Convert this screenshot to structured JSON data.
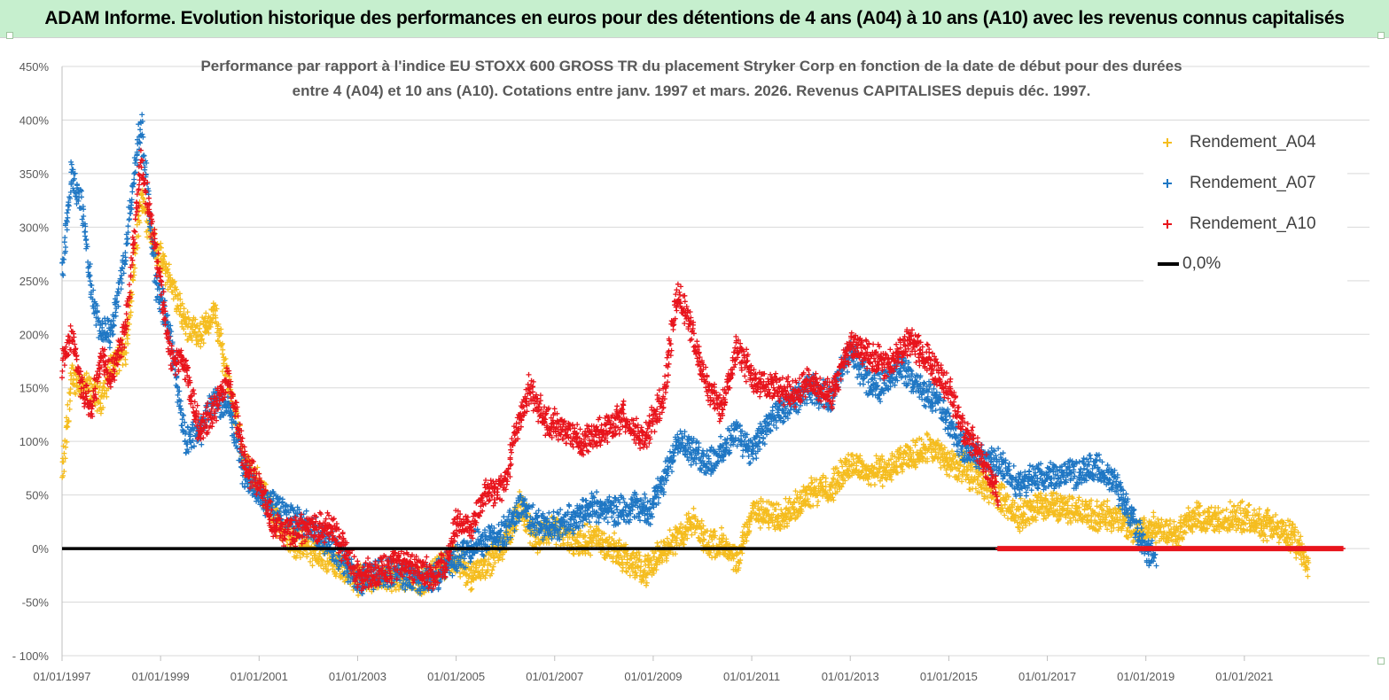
{
  "header": {
    "title": "ADAM Informe. Evolution historique des performances en euros pour des détentions de 4 ans (A04) à 10 ans (A10) avec les revenus connus capitalisés"
  },
  "colors": {
    "banner_bg": "#c6efce",
    "a04": "#f5bd1f",
    "a07": "#1f77c4",
    "a10": "#e8141c",
    "zero_line": "#000000"
  },
  "chart_data": {
    "type": "scatter",
    "title_line1": "Performance par rapport à l'indice EU STOXX 600 GROSS TR  du placement Stryker Corp en fonction de la date de début pour des durées",
    "title_line2": "entre 4 (A04) et 10 ans (A10). Cotations entre janv. 1997 et mars. 2026. Revenus CAPITALISES depuis déc. 1997.",
    "xlim": [
      1997.0,
      2023.0
    ],
    "ylim": [
      -100,
      450
    ],
    "y_ticks": [
      450,
      400,
      350,
      300,
      250,
      200,
      150,
      100,
      50,
      0,
      -50,
      -100
    ],
    "y_tick_labels": [
      "450%",
      "400%",
      "350%",
      "300%",
      "250%",
      "200%",
      "150%",
      "100%",
      "50%",
      "0%",
      "-50%",
      "- 100%"
    ],
    "x_ticks": [
      1997,
      1999,
      2001,
      2003,
      2005,
      2007,
      2009,
      2011,
      2013,
      2015,
      2017,
      2019,
      2021
    ],
    "x_tick_labels": [
      "01/01/1997",
      "01/01/1999",
      "01/01/2001",
      "01/01/2003",
      "01/01/2005",
      "01/01/2007",
      "01/01/2009",
      "01/01/2011",
      "01/01/2013",
      "01/01/2015",
      "01/01/2017",
      "01/01/2019",
      "01/01/2021"
    ],
    "grid": "horizontal",
    "legend_position": "top-right",
    "series": [
      {
        "name": "Rendement_A04",
        "color": "#f5bd1f",
        "x": [
          1997.0,
          1997.2,
          1997.5,
          1997.8,
          1998.0,
          1998.3,
          1998.6,
          1998.9,
          1999.2,
          1999.5,
          1999.8,
          2000.1,
          2000.4,
          2000.7,
          2001.0,
          2001.3,
          2001.6,
          2002.0,
          2002.5,
          2003.0,
          2003.5,
          2004.0,
          2004.3,
          2004.6,
          2005.0,
          2005.3,
          2005.7,
          2006.0,
          2006.3,
          2006.6,
          2007.0,
          2007.4,
          2007.8,
          2008.2,
          2008.6,
          2008.9,
          2009.2,
          2009.5,
          2009.8,
          2010.1,
          2010.4,
          2010.7,
          2011.0,
          2011.4,
          2011.8,
          2012.2,
          2012.6,
          2013.0,
          2013.4,
          2013.8,
          2014.2,
          2014.6,
          2015.0,
          2015.3,
          2015.6,
          2016.0,
          2016.4,
          2016.8,
          2017.2,
          2017.6,
          2018.0,
          2018.4,
          2018.8,
          2019.2,
          2019.6,
          2020.0,
          2020.4,
          2020.8,
          2021.2,
          2021.6,
          2022.0,
          2022.3
        ],
        "y": [
          65,
          160,
          150,
          140,
          170,
          185,
          330,
          280,
          250,
          210,
          200,
          220,
          150,
          80,
          60,
          30,
          10,
          0,
          -15,
          -30,
          -28,
          -25,
          -32,
          -20,
          -10,
          -25,
          -10,
          5,
          40,
          10,
          20,
          5,
          10,
          0,
          -15,
          -20,
          0,
          10,
          25,
          5,
          5,
          -15,
          35,
          30,
          35,
          55,
          55,
          80,
          70,
          75,
          85,
          95,
          80,
          75,
          65,
          50,
          30,
          40,
          40,
          35,
          30,
          30,
          15,
          20,
          15,
          30,
          25,
          30,
          25,
          20,
          10,
          -15
        ]
      },
      {
        "name": "Rendement_A07",
        "color": "#1f77c4",
        "x": [
          1997.0,
          1997.2,
          1997.4,
          1997.6,
          1997.8,
          1998.0,
          1998.3,
          1998.6,
          1998.9,
          1999.2,
          1999.5,
          1999.8,
          2000.1,
          2000.4,
          2000.7,
          2001.0,
          2001.3,
          2001.6,
          2002.0,
          2002.5,
          2003.0,
          2003.5,
          2004.0,
          2004.5,
          2005.0,
          2005.3,
          2005.7,
          2006.0,
          2006.3,
          2006.6,
          2007.0,
          2007.4,
          2007.8,
          2008.2,
          2008.6,
          2008.9,
          2009.2,
          2009.5,
          2009.8,
          2010.1,
          2010.4,
          2010.7,
          2011.0,
          2011.4,
          2011.8,
          2012.2,
          2012.6,
          2013.0,
          2013.3,
          2013.6,
          2014.0,
          2014.4,
          2014.8,
          2015.2,
          2015.6,
          2016.0,
          2016.4,
          2016.8,
          2017.2,
          2017.6,
          2018.0,
          2018.4,
          2018.8,
          2019.0,
          2019.2
        ],
        "y": [
          260,
          350,
          320,
          240,
          200,
          200,
          280,
          400,
          250,
          200,
          100,
          110,
          140,
          130,
          70,
          50,
          40,
          30,
          20,
          0,
          -30,
          -20,
          -25,
          -30,
          -10,
          0,
          10,
          15,
          40,
          25,
          20,
          30,
          40,
          35,
          40,
          35,
          60,
          105,
          90,
          80,
          90,
          110,
          90,
          120,
          135,
          150,
          140,
          185,
          160,
          150,
          170,
          150,
          135,
          100,
          85,
          80,
          60,
          65,
          70,
          70,
          75,
          60,
          20,
          0,
          -10
        ]
      },
      {
        "name": "Rendement_A10",
        "color": "#e8141c",
        "x": [
          1997.0,
          1997.2,
          1997.4,
          1997.6,
          1997.8,
          1998.0,
          1998.3,
          1998.6,
          1998.9,
          1999.2,
          1999.5,
          1999.8,
          2000.1,
          2000.4,
          2000.7,
          2001.0,
          2001.3,
          2001.6,
          2002.0,
          2002.5,
          2003.0,
          2003.5,
          2004.0,
          2004.5,
          2004.8,
          2005.0,
          2005.3,
          2005.6,
          2006.0,
          2006.2,
          2006.5,
          2006.8,
          2007.2,
          2007.6,
          2008.0,
          2008.4,
          2008.8,
          2009.2,
          2009.5,
          2009.8,
          2010.1,
          2010.4,
          2010.7,
          2011.0,
          2011.4,
          2011.8,
          2012.2,
          2012.6,
          2013.0,
          2013.4,
          2013.8,
          2014.2,
          2014.6,
          2015.0,
          2015.3,
          2015.6,
          2016.0
        ],
        "y": [
          170,
          200,
          150,
          130,
          180,
          160,
          210,
          360,
          280,
          180,
          170,
          110,
          130,
          160,
          80,
          60,
          20,
          15,
          20,
          20,
          -25,
          -20,
          -15,
          -25,
          -15,
          25,
          20,
          50,
          60,
          110,
          150,
          120,
          110,
          100,
          110,
          125,
          100,
          140,
          240,
          200,
          150,
          130,
          190,
          160,
          150,
          145,
          155,
          140,
          190,
          180,
          170,
          195,
          175,
          150,
          110,
          90,
          50
        ]
      },
      {
        "name": "0,0%",
        "color": "#000000",
        "type": "line",
        "x": [
          1997.0,
          2016.0
        ],
        "y": [
          0,
          0
        ]
      }
    ]
  },
  "legend": {
    "items": [
      {
        "label": "Rendement_A04",
        "marker": "plus",
        "color": "#f5bd1f"
      },
      {
        "label": "Rendement_A07",
        "marker": "plus",
        "color": "#1f77c4"
      },
      {
        "label": "Rendement_A10",
        "marker": "plus",
        "color": "#e8141c"
      },
      {
        "label": "0,0%",
        "marker": "line",
        "color": "#000000"
      }
    ]
  }
}
